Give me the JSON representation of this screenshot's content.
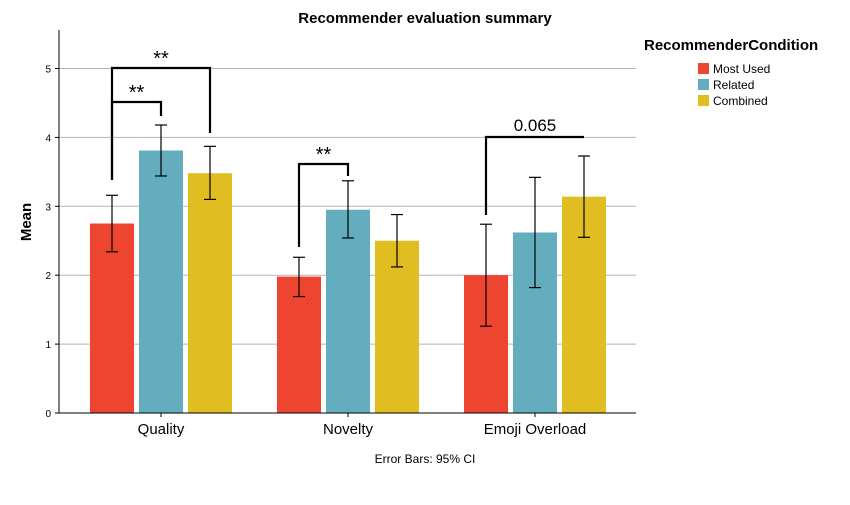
{
  "chart_data": {
    "type": "bar",
    "title": "Recommender evaluation summary",
    "xlabel": "",
    "ylabel": "Mean",
    "footnote": "Error Bars: 95% CI",
    "ylim": [
      0,
      5.5
    ],
    "yticks": [
      "0",
      "1",
      "2",
      "3",
      "4",
      "5"
    ],
    "grid": true,
    "legend_title": "RecommenderCondition",
    "legend_position": "top-right",
    "categories": [
      "Quality",
      "Novelty",
      "Emoji Overload"
    ],
    "series": [
      {
        "name": "Most Used",
        "color": "#ee4530",
        "values": [
          2.75,
          1.98,
          2.0
        ],
        "ci_low": [
          2.34,
          1.69,
          1.26
        ],
        "ci_high": [
          3.16,
          2.26,
          2.74
        ]
      },
      {
        "name": "Related",
        "color": "#63adbe",
        "values": [
          3.81,
          2.95,
          2.62
        ],
        "ci_low": [
          3.44,
          2.54,
          1.82
        ],
        "ci_high": [
          4.18,
          3.37,
          3.42
        ]
      },
      {
        "name": "Combined",
        "color": "#e0bd20",
        "values": [
          3.48,
          2.5,
          3.14
        ],
        "ci_low": [
          3.1,
          2.12,
          2.55
        ],
        "ci_high": [
          3.87,
          2.88,
          3.73
        ]
      }
    ],
    "annotations": [
      {
        "label": "**",
        "category": 0,
        "from_series": 0,
        "to_series": 1
      },
      {
        "label": "**",
        "category": 0,
        "from_series": 0,
        "to_series": 2
      },
      {
        "label": "**",
        "category": 1,
        "from_series": 0,
        "to_series": 1
      },
      {
        "label": "0.065",
        "category": 2,
        "from_series": 0,
        "to_series": 2
      }
    ]
  }
}
